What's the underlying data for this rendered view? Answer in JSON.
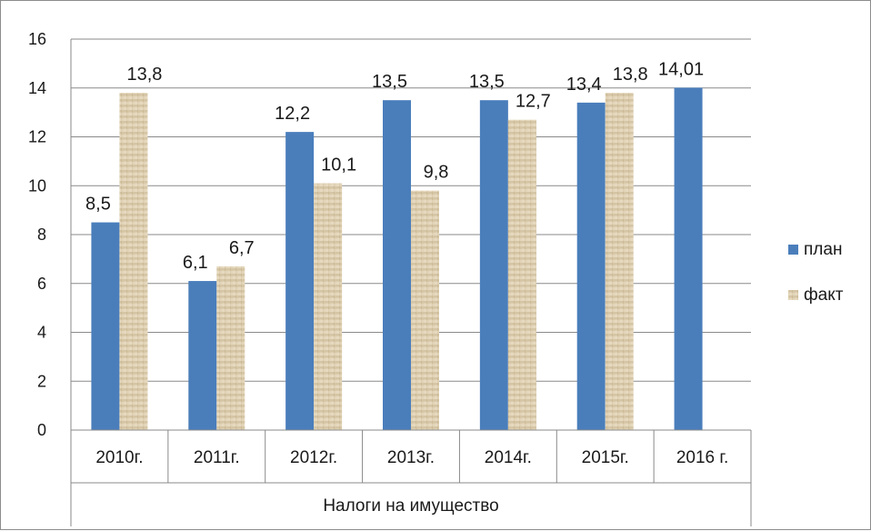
{
  "chart_data": {
    "type": "bar",
    "categories": [
      "2010г.",
      "2011г.",
      "2012г.",
      "2013г.",
      "2014г.",
      "2015г.",
      "2016 г."
    ],
    "group_label": "Налоги на имущество",
    "series": [
      {
        "name": "план",
        "color": "#4a7ebb",
        "values": [
          8.5,
          6.1,
          12.2,
          13.5,
          13.5,
          13.4,
          14.01
        ],
        "labels": [
          "8,5",
          "6,1",
          "12,2",
          "13,5",
          "13,5",
          "13,4",
          "14,01"
        ]
      },
      {
        "name": "факт",
        "color": "#d9c9a8",
        "values": [
          13.8,
          6.7,
          10.1,
          9.8,
          12.7,
          13.8,
          null
        ],
        "labels": [
          "13,8",
          "6,7",
          "10,1",
          "9,8",
          "12,7",
          "13,8",
          null
        ]
      }
    ],
    "ylim": [
      0,
      16
    ],
    "yticks": [
      0,
      2,
      4,
      6,
      8,
      10,
      12,
      14,
      16
    ],
    "grid": true,
    "legend_position": "right"
  }
}
